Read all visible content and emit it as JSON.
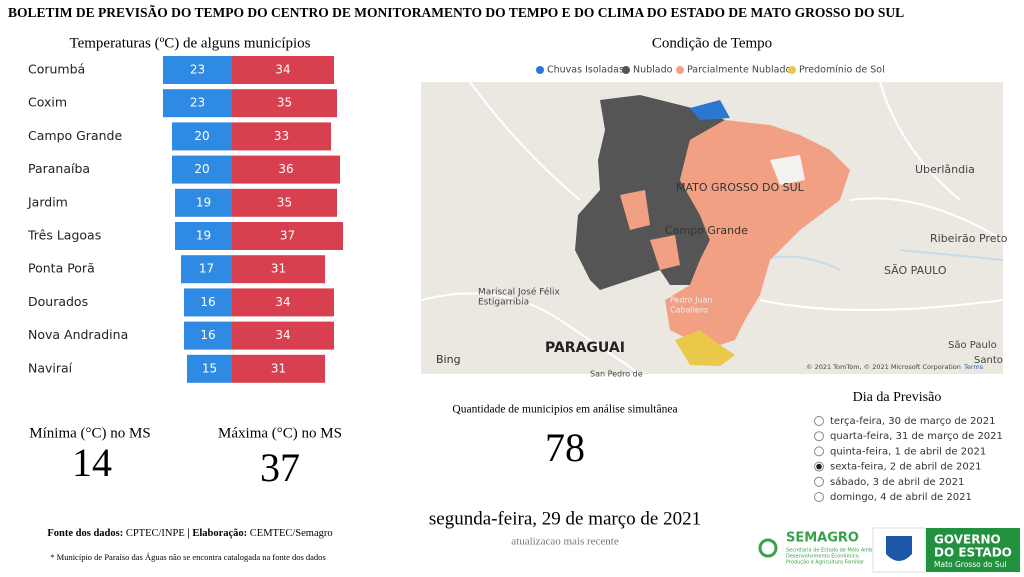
{
  "header": {
    "title": "BOLETIM DE PREVISÃO DO TEMPO DO CENTRO DE MONITORAMENTO DO TEMPO E DO CLIMA DO ESTADO DE MATO GROSSO DO SUL"
  },
  "chart_data": {
    "type": "diverging-bar",
    "title": "Temperaturas (ºC) de alguns municípios",
    "categories": [
      "Corumbá",
      "Coxim",
      "Campo Grande",
      "Paranaíba",
      "Jardim",
      "Três Lagoas",
      "Ponta Porã",
      "Dourados",
      "Nova Andradina",
      "Naviraí"
    ],
    "series": [
      {
        "color": "#2f8ae3",
        "values": [
          23,
          23,
          20,
          20,
          19,
          19,
          17,
          16,
          16,
          15
        ]
      },
      {
        "color": "#d8404f",
        "values": [
          34,
          35,
          33,
          36,
          35,
          37,
          31,
          34,
          34,
          31
        ]
      }
    ]
  },
  "kpis": {
    "min": {
      "label": "Mínima (°C) no MS",
      "value": 14
    },
    "max": {
      "label": "Máxima (°C) no MS",
      "value": 37
    },
    "count": {
      "label": "Quantidade de municipios em análise simultânea",
      "value": 78
    }
  },
  "map": {
    "title": "Condição de Tempo",
    "legend": [
      {
        "name": "Chuvas Isoladas",
        "color": "#2a78d4"
      },
      {
        "name": "Nublado",
        "color": "#555555"
      },
      {
        "name": "Parcialmente Nublado",
        "color": "#f2a084"
      },
      {
        "name": "Predomínio de Sol",
        "color": "#e9c84a"
      }
    ],
    "labels": [
      "MATO GROSSO DO SUL",
      "Campo Grande",
      "Uberlândia",
      "Ribeirão Preto",
      "SÃO PAULO",
      "Mariscal José Félix",
      "Estigarribia",
      "PARAGUAI",
      "Pedro Juan",
      "Caballero",
      "São Paulo",
      "Santo",
      "San Pedro de"
    ],
    "provider": "Bing",
    "copyright": "© 2021 TomTom, © 2021 Microsoft Corporation",
    "terms": "Terms"
  },
  "date": {
    "text": "segunda-feira, 29 de março de 2021",
    "caption": "atualizacao mais recente"
  },
  "forecast": {
    "title": "Dia da Previsão",
    "selected_index": 3,
    "options": [
      "terça-feira, 30 de março de 2021",
      "quarta-feira, 31 de março de 2021",
      "quinta-feira, 1 de abril de 2021",
      "sexta-feira, 2 de abril de 2021",
      "sábado, 3 de abril de 2021",
      "domingo, 4 de abril de 2021"
    ]
  },
  "footer": {
    "source_label": "Fonte dos dados:",
    "source": "CPTEC/INPE",
    "made_label": "| Elaboração:",
    "made": "CEMTEC/Semagro",
    "note": "* Município de Paraíso das Águas não se encontra catalogada na fonte dos dados"
  },
  "logos": {
    "semagro": "SEMAGRO",
    "semagro_sub": [
      "Secretaria de Estado de Meio Ambiente,",
      "Desenvolvimento Econômico,",
      "Produção e Agricultura Familiar"
    ],
    "gov": [
      "GOVERNO",
      "DO ESTADO",
      "Mato Grosso do Sul"
    ]
  }
}
